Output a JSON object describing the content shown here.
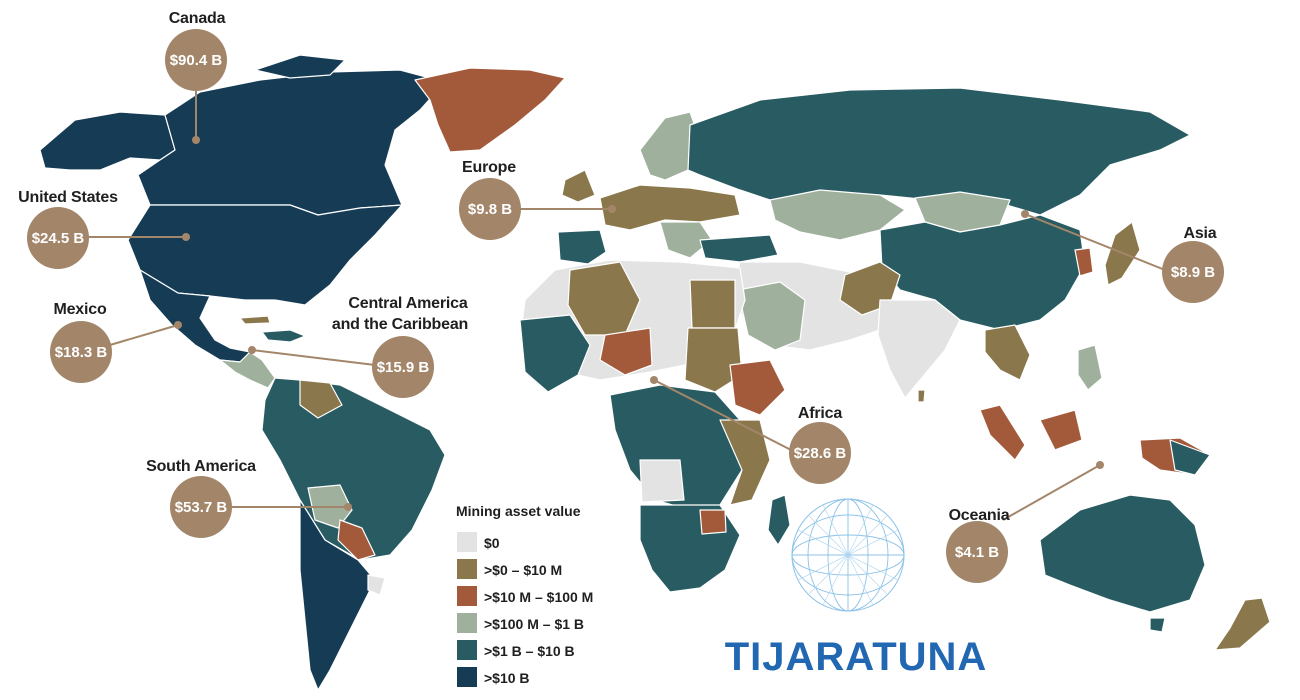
{
  "colors": {
    "zero": "#e3e3e3",
    "tier1": "#8b774c",
    "tier2": "#a35a3a",
    "tier3": "#9fb09d",
    "tier4": "#285c62",
    "tier5": "#163c55",
    "bubble": "#a38669",
    "brand": "#2167b1"
  },
  "legend": {
    "title": "Mining asset value",
    "items": [
      {
        "label": "$0",
        "color_key": "zero"
      },
      {
        "label": ">$0 – $10 M",
        "color_key": "tier1"
      },
      {
        "label": ">$10 M – $100 M",
        "color_key": "tier2"
      },
      {
        "label": ">$100 M – $1 B",
        "color_key": "tier3"
      },
      {
        "label": ">$1 B – $10 B",
        "color_key": "tier4"
      },
      {
        "label": ">$10 B",
        "color_key": "tier5"
      }
    ]
  },
  "regions": [
    {
      "id": "canada",
      "name": "Canada",
      "value": "$90.4 B"
    },
    {
      "id": "united-states",
      "name": "United States",
      "value": "$24.5 B"
    },
    {
      "id": "mexico",
      "name": "Mexico",
      "value": "$18.3 B"
    },
    {
      "id": "central-america",
      "name": "Central America and the Caribbean",
      "name_lines": [
        "Central America",
        "and the Caribbean"
      ],
      "value": "$15.9 B"
    },
    {
      "id": "south-america",
      "name": "South America",
      "value": "$53.7 B"
    },
    {
      "id": "europe",
      "name": "Europe",
      "value": "$9.8 B"
    },
    {
      "id": "africa",
      "name": "Africa",
      "value": "$28.6 B"
    },
    {
      "id": "asia",
      "name": "Asia",
      "value": "$8.9 B"
    },
    {
      "id": "oceania",
      "name": "Oceania",
      "value": "$4.1 B"
    }
  ],
  "brand": {
    "name": "TIJARATUNA",
    "icon": "globe-mesh-icon"
  }
}
